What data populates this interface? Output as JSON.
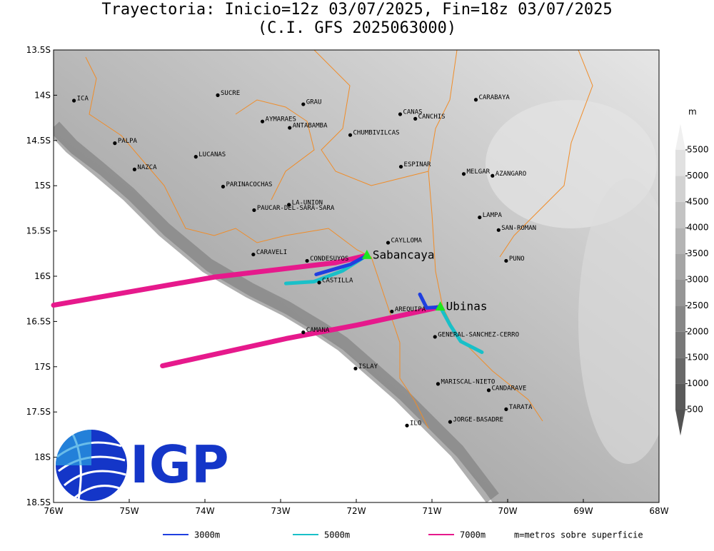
{
  "map": {
    "title": "Trayectoria: Inicio=12z 03/07/2025, Fin=18z 03/07/2025",
    "subtitle": "(C.I. GFS 2025063000)",
    "xlim": [
      -76,
      -68
    ],
    "ylim": [
      -18.5,
      -13.5
    ],
    "xticks": [
      {
        "value": -76,
        "label": "76W"
      },
      {
        "value": -75,
        "label": "75W"
      },
      {
        "value": -74,
        "label": "74W"
      },
      {
        "value": -73,
        "label": "73W"
      },
      {
        "value": -72,
        "label": "72W"
      },
      {
        "value": -71,
        "label": "71W"
      },
      {
        "value": -70,
        "label": "70W"
      },
      {
        "value": -69,
        "label": "69W"
      },
      {
        "value": -68,
        "label": "68W"
      }
    ],
    "yticks": [
      {
        "value": -13.5,
        "label": "13.5S"
      },
      {
        "value": -14,
        "label": "14S"
      },
      {
        "value": -14.5,
        "label": "14.5S"
      },
      {
        "value": -15,
        "label": "15S"
      },
      {
        "value": -15.5,
        "label": "15.5S"
      },
      {
        "value": -16,
        "label": "16S"
      },
      {
        "value": -16.5,
        "label": "16.5S"
      },
      {
        "value": -17,
        "label": "17S"
      },
      {
        "value": -17.5,
        "label": "17.5S"
      },
      {
        "value": -18,
        "label": "18S"
      },
      {
        "value": -18.5,
        "label": "18.5S"
      }
    ],
    "cities": [
      {
        "name": "ICA",
        "lon": -75.73,
        "lat": -14.06
      },
      {
        "name": "SUCRE",
        "lon": -73.83,
        "lat": -14.0
      },
      {
        "name": "GRAU",
        "lon": -72.7,
        "lat": -14.1
      },
      {
        "name": "AYMARAES",
        "lon": -73.24,
        "lat": -14.29
      },
      {
        "name": "ANTABAMBA",
        "lon": -72.88,
        "lat": -14.36
      },
      {
        "name": "CHUMBIVILCAS",
        "lon": -72.08,
        "lat": -14.44
      },
      {
        "name": "CANAS",
        "lon": -71.42,
        "lat": -14.21
      },
      {
        "name": "CANCHIS",
        "lon": -71.22,
        "lat": -14.26
      },
      {
        "name": "CARABAYA",
        "lon": -70.42,
        "lat": -14.05
      },
      {
        "name": "PALPA",
        "lon": -75.19,
        "lat": -14.53
      },
      {
        "name": "LUCANAS",
        "lon": -74.12,
        "lat": -14.68
      },
      {
        "name": "NAZCA",
        "lon": -74.93,
        "lat": -14.82
      },
      {
        "name": "ESPINAR",
        "lon": -71.41,
        "lat": -14.79
      },
      {
        "name": "MELGAR",
        "lon": -70.58,
        "lat": -14.87
      },
      {
        "name": "AZANGARO",
        "lon": -70.2,
        "lat": -14.89
      },
      {
        "name": "PARINACOCHAS",
        "lon": -73.76,
        "lat": -15.01
      },
      {
        "name": "LA-UNION",
        "lon": -72.89,
        "lat": -15.21
      },
      {
        "name": "PAUCAR-DEL-SARA-SARA",
        "lon": -73.35,
        "lat": -15.27
      },
      {
        "name": "LAMPA",
        "lon": -70.37,
        "lat": -15.35
      },
      {
        "name": "SAN-ROMAN",
        "lon": -70.12,
        "lat": -15.49
      },
      {
        "name": "CAYLLOMA",
        "lon": -71.58,
        "lat": -15.63
      },
      {
        "name": "CARAVELI",
        "lon": -73.36,
        "lat": -15.76
      },
      {
        "name": "CONDESUYOS",
        "lon": -72.65,
        "lat": -15.83
      },
      {
        "name": "PUNO",
        "lon": -70.02,
        "lat": -15.83
      },
      {
        "name": "CASTILLA",
        "lon": -72.49,
        "lat": -16.07
      },
      {
        "name": "AREQUIPA",
        "lon": -71.53,
        "lat": -16.39
      },
      {
        "name": "GENERAL-SANCHEZ-CERRO",
        "lon": -70.96,
        "lat": -16.67
      },
      {
        "name": "CAMANA",
        "lon": -72.7,
        "lat": -16.62
      },
      {
        "name": "ISLAY",
        "lon": -72.01,
        "lat": -17.02
      },
      {
        "name": "MARISCAL-NIETO",
        "lon": -70.92,
        "lat": -17.19
      },
      {
        "name": "CANDARAVE",
        "lon": -70.25,
        "lat": -17.26
      },
      {
        "name": "TARATA",
        "lon": -70.02,
        "lat": -17.47
      },
      {
        "name": "ILO",
        "lon": -71.33,
        "lat": -17.65
      },
      {
        "name": "JORGE-BASADRE",
        "lon": -70.76,
        "lat": -17.61
      }
    ],
    "volcanoes": [
      {
        "name": "Sabancaya",
        "lon": -71.86,
        "lat": -15.77
      },
      {
        "name": "Ubinas",
        "lon": -70.89,
        "lat": -16.34
      }
    ],
    "trajectories": [
      {
        "name": "3000m",
        "color": "#1f3fe0",
        "paths": [
          {
            "lon": [
              -71.86,
              -72.08,
              -72.53
            ],
            "lat": [
              -15.77,
              -15.87,
              -15.98
            ]
          },
          {
            "lon": [
              -70.89,
              -71.07,
              -71.16
            ],
            "lat": [
              -16.34,
              -16.35,
              -16.2
            ]
          }
        ]
      },
      {
        "name": "5000m",
        "color": "#19c0c8",
        "paths": [
          {
            "lon": [
              -71.86,
              -72.18,
              -72.56,
              -72.93
            ],
            "lat": [
              -15.77,
              -15.94,
              -16.06,
              -16.08
            ]
          },
          {
            "lon": [
              -70.89,
              -70.76,
              -70.62,
              -70.34
            ],
            "lat": [
              -16.34,
              -16.54,
              -16.72,
              -16.84
            ]
          }
        ]
      },
      {
        "name": "7000m",
        "color": "#e6198c",
        "paths": [
          {
            "lon": [
              -71.86,
              -72.27,
              -73.88,
              -76.0
            ],
            "lat": [
              -15.77,
              -15.85,
              -16.01,
              -16.32
            ]
          },
          {
            "lon": [
              -70.89,
              -71.99,
              -72.93,
              -74.56
            ],
            "lat": [
              -16.34,
              -16.54,
              -16.69,
              -16.99
            ]
          }
        ]
      }
    ],
    "legend_note": "m=metros sobre superficie",
    "colorbar": {
      "unit": "m",
      "ticks": [
        500,
        1000,
        1500,
        2000,
        2500,
        3000,
        3500,
        4000,
        4500,
        5000,
        5500
      ]
    },
    "logo": "IGP"
  }
}
